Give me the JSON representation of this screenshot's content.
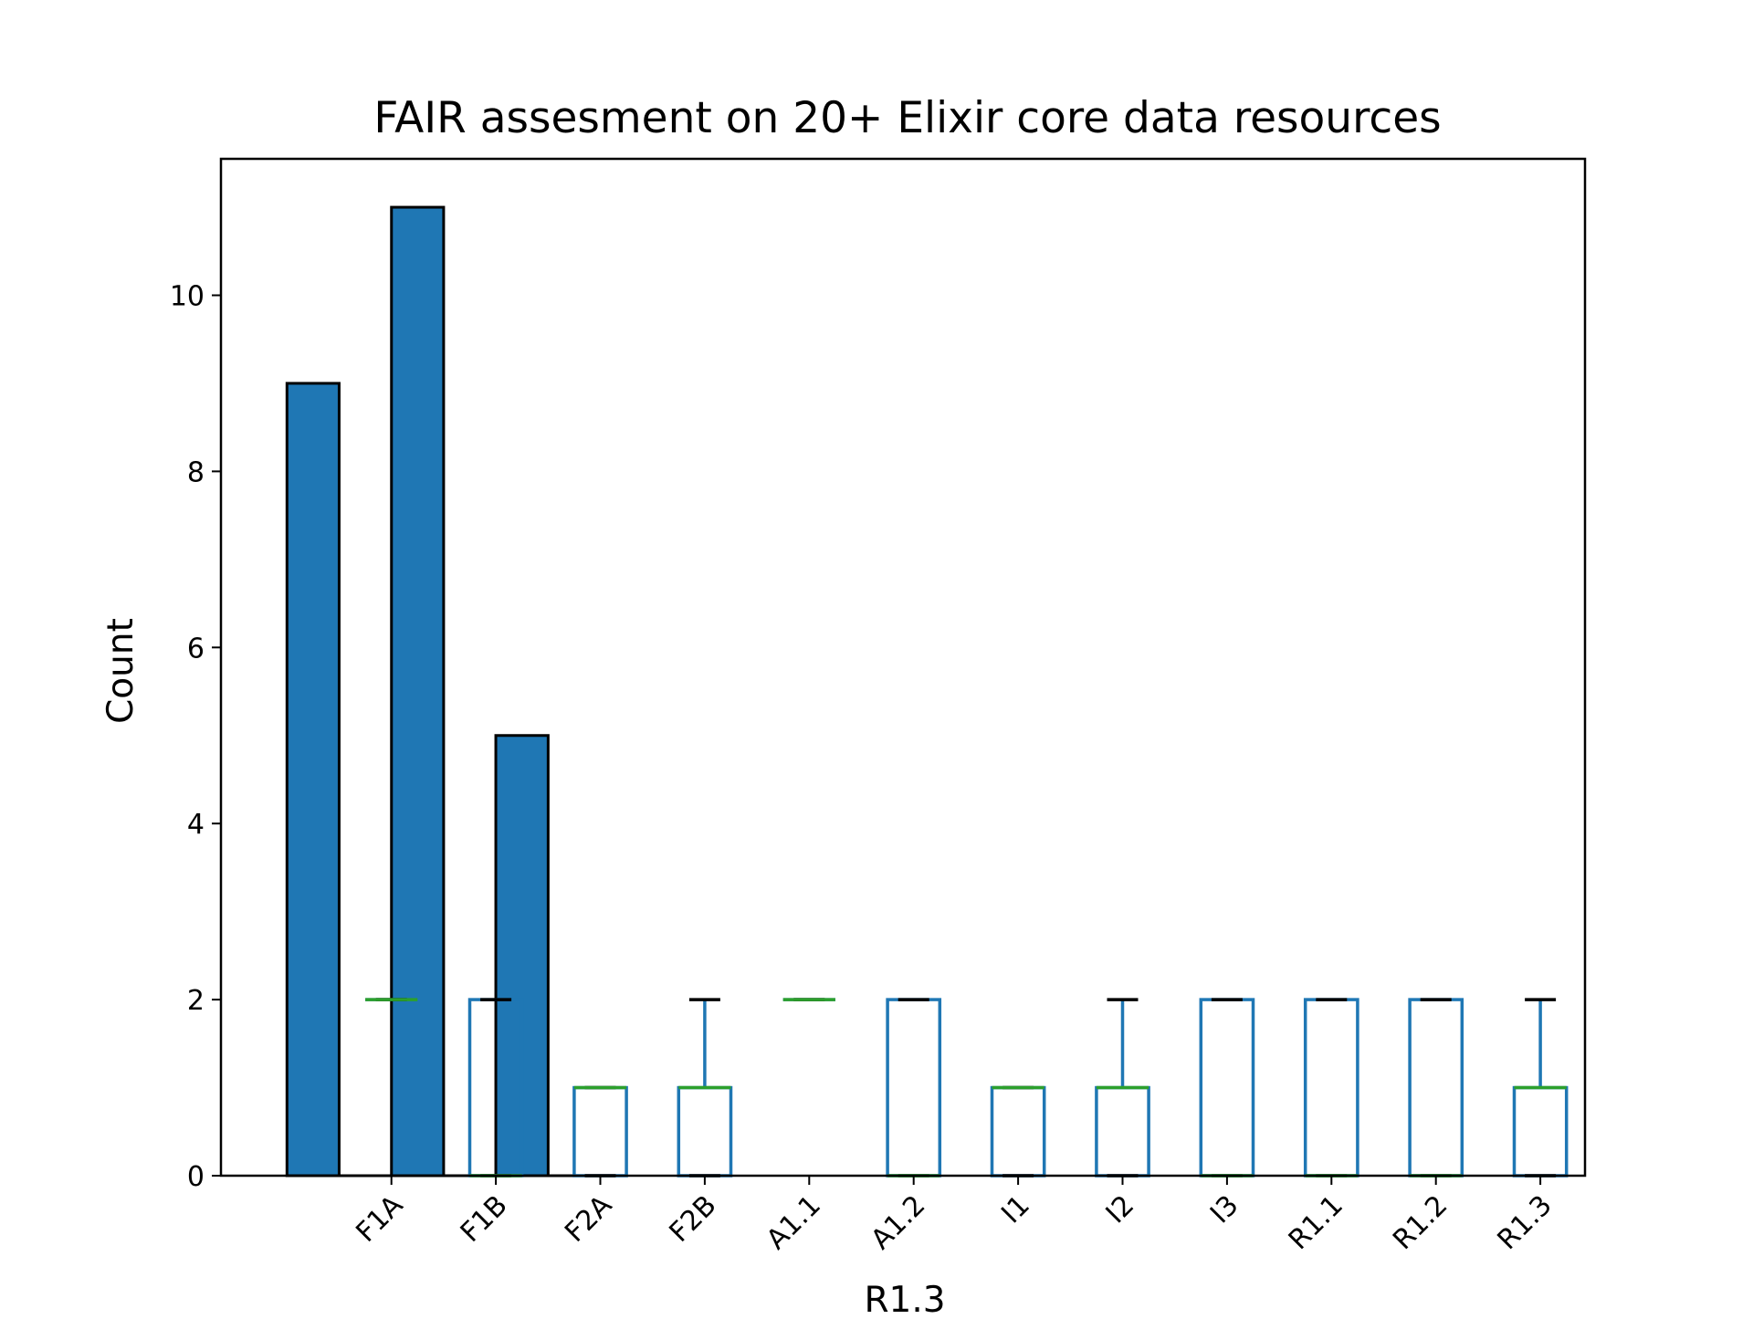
{
  "chart_data": {
    "type": "bar",
    "title": "FAIR assesment on 20+ Elixir core data resources",
    "xlabel": "R1.3",
    "ylabel": "Count",
    "ylim": [
      0,
      11.55
    ],
    "yticks": [
      "0",
      "2",
      "4",
      "6",
      "8",
      "10"
    ],
    "xtick_labels": [
      "F1A",
      "F1B",
      "F2A",
      "F2B",
      "A1.1",
      "A1.2",
      "I1",
      "I2",
      "I3",
      "R1.1",
      "R1.2",
      "R1.3"
    ],
    "histogram": {
      "bin_edges": [
        0.0,
        0.333,
        0.667,
        1.0,
        1.333,
        1.667,
        2.0
      ],
      "counts": [
        9,
        0,
        11,
        0,
        5,
        0
      ]
    },
    "boxplots": [
      {
        "label": "F1A",
        "whislo": 2,
        "q1": 2,
        "med": 2,
        "q3": 2,
        "whishi": 2
      },
      {
        "label": "F1B",
        "whislo": 0,
        "q1": 0,
        "med": 0,
        "q3": 2,
        "whishi": 2
      },
      {
        "label": "F2A",
        "whislo": 0,
        "q1": 0,
        "med": 1,
        "q3": 1,
        "whishi": 1
      },
      {
        "label": "F2B",
        "whislo": 0,
        "q1": 0,
        "med": 1,
        "q3": 1,
        "whishi": 2
      },
      {
        "label": "A1.1",
        "whislo": 2,
        "q1": 2,
        "med": 2,
        "q3": 2,
        "whishi": 2
      },
      {
        "label": "A1.2",
        "whislo": 0,
        "q1": 0,
        "med": 0,
        "q3": 2,
        "whishi": 2
      },
      {
        "label": "I1",
        "whislo": 0,
        "q1": 0,
        "med": 1,
        "q3": 1,
        "whishi": 1
      },
      {
        "label": "I2",
        "whislo": 0,
        "q1": 0,
        "med": 1,
        "q3": 1,
        "whishi": 2
      },
      {
        "label": "I3",
        "whislo": 0,
        "q1": 0,
        "med": 0,
        "q3": 2,
        "whishi": 2
      },
      {
        "label": "R1.1",
        "whislo": 0,
        "q1": 0,
        "med": 0,
        "q3": 2,
        "whishi": 2
      },
      {
        "label": "R1.2",
        "whislo": 0,
        "q1": 0,
        "med": 0,
        "q3": 2,
        "whishi": 2
      },
      {
        "label": "R1.3",
        "whislo": 0,
        "q1": 0,
        "med": 1,
        "q3": 1,
        "whishi": 2
      }
    ],
    "grid": false,
    "colors": {
      "bar_fill": "#1f77b4",
      "bar_edge": "#000000",
      "box": "#1f77b4",
      "median": "#2ca02c",
      "cap": "#000000"
    }
  }
}
